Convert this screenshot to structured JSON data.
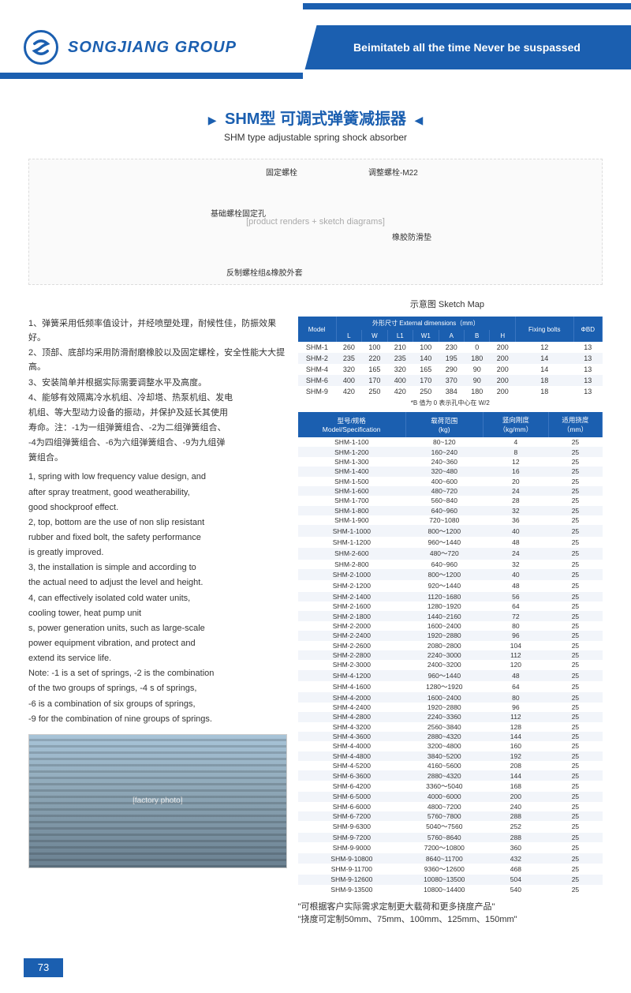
{
  "header": {
    "company": "SONGJIANG GROUP",
    "slogan": "Beimitateb all the time Never be suspassed"
  },
  "title": {
    "cn": "SHM型 可调式弹簧减振器",
    "en": "SHM type adjustable spring shock absorber",
    "sketch_label": "示意图 Sketch Map"
  },
  "diagram_labels": {
    "l1": "固定螺栓",
    "l2": "调整螺栓-M22",
    "l3": "基础螺栓固定孔",
    "l4": "橡胶防滑垫",
    "l5": "反制螺栓组&橡胶外套"
  },
  "cn_desc": [
    "1、弹簧采用低频率值设计，并经喷塑处理，耐候性佳，防振效果好。",
    "2、顶部、底部均采用防滑耐磨橡胶以及固定螺栓，安全性能大大提高。",
    "3、安装简单并根据实际需要调整水平及高度。",
    "4、能够有效隔离冷水机组、冷却塔、热泵机组、发电",
    "机组、等大型动力设备的振动，并保护及延长其使用",
    "寿命。注：-1为一组弹簧组合、-2为二组弹簧组合、",
    "-4为四组弹簧组合、-6为六组弹簧组合、-9为九组弹",
    "簧组合。"
  ],
  "en_desc": [
    "1, spring with low frequency value design, and",
    "after spray treatment, good weatherability,",
    "good shockproof effect.",
    "2, top, bottom are the use of non slip resistant",
    "rubber and fixed bolt, the safety performance",
    "is greatly improved.",
    "3, the installation is simple and according to",
    "the actual need to adjust the level and height.",
    "4, can effectively isolated cold water units,",
    "cooling tower, heat pump unit",
    "s, power generation units, such as large-scale",
    "power equipment vibration, and protect and",
    "extend its service life.",
    "Note: -1 is a set of springs, -2 is the combination",
    "of the two groups of springs, -4 s of springs,",
    "-6 is a combination of six groups of springs,",
    "-9 for the combination of nine groups of springs."
  ],
  "dim_table": {
    "headers_top": [
      "型号",
      "外形尺寸 External dimensions（mm）",
      "固定螺栓",
      ""
    ],
    "headers": [
      "Model",
      "L",
      "W",
      "L1",
      "W1",
      "A",
      "B",
      "H",
      "Fixing bolts",
      "ΦBD"
    ],
    "rows": [
      [
        "SHM-1",
        "260",
        "100",
        "210",
        "100",
        "230",
        "0",
        "200",
        "12",
        "13"
      ],
      [
        "SHM-2",
        "235",
        "220",
        "235",
        "140",
        "195",
        "180",
        "200",
        "14",
        "13"
      ],
      [
        "SHM-4",
        "320",
        "165",
        "320",
        "165",
        "290",
        "90",
        "200",
        "14",
        "13"
      ],
      [
        "SHM-6",
        "400",
        "170",
        "400",
        "170",
        "370",
        "90",
        "200",
        "18",
        "13"
      ],
      [
        "SHM-9",
        "420",
        "250",
        "420",
        "250",
        "384",
        "180",
        "200",
        "18",
        "13"
      ]
    ],
    "note": "*B 值为 0 表示孔中心在 W/2"
  },
  "spec_table": {
    "headers": [
      "型号/规格\nModel/Specification",
      "载荷范围\n(kg)",
      "竖向刚度\n（kg/mm）",
      "适用挠度\n（mm）"
    ],
    "rows": [
      [
        "SHM-1-100",
        "80~120",
        "4",
        "25"
      ],
      [
        "SHM-1-200",
        "160~240",
        "8",
        "25"
      ],
      [
        "SHM-1-300",
        "240~360",
        "12",
        "25"
      ],
      [
        "SHM-1-400",
        "320~480",
        "16",
        "25"
      ],
      [
        "SHM-1-500",
        "400~600",
        "20",
        "25"
      ],
      [
        "SHM-1-600",
        "480~720",
        "24",
        "25"
      ],
      [
        "SHM-1-700",
        "560~840",
        "28",
        "25"
      ],
      [
        "SHM-1-800",
        "640~960",
        "32",
        "25"
      ],
      [
        "SHM-1-900",
        "720~1080",
        "36",
        "25"
      ],
      [
        "SHM-1-1000",
        "800～1200",
        "40",
        "25"
      ],
      [
        "SHM-1-1200",
        "960～1440",
        "48",
        "25"
      ],
      [
        "SHM-2-600",
        "480～720",
        "24",
        "25"
      ],
      [
        "SHM-2-800",
        "640~960",
        "32",
        "25"
      ],
      [
        "SHM-2-1000",
        "800～1200",
        "40",
        "25"
      ],
      [
        "SHM-2-1200",
        "920～1440",
        "48",
        "25"
      ],
      [
        "SHM-2-1400",
        "1120~1680",
        "56",
        "25"
      ],
      [
        "SHM-2-1600",
        "1280~1920",
        "64",
        "25"
      ],
      [
        "SHM-2-1800",
        "1440~2160",
        "72",
        "25"
      ],
      [
        "SHM-2-2000",
        "1600~2400",
        "80",
        "25"
      ],
      [
        "SHM-2-2400",
        "1920~2880",
        "96",
        "25"
      ],
      [
        "SHM-2-2600",
        "2080~2800",
        "104",
        "25"
      ],
      [
        "SHM-2-2800",
        "2240~3000",
        "112",
        "25"
      ],
      [
        "SHM-2-3000",
        "2400~3200",
        "120",
        "25"
      ],
      [
        "SHM-4-1200",
        "960～1440",
        "48",
        "25"
      ],
      [
        "SHM-4-1600",
        "1280～1920",
        "64",
        "25"
      ],
      [
        "SHM-4-2000",
        "1600~2400",
        "80",
        "25"
      ],
      [
        "SHM-4-2400",
        "1920~2880",
        "96",
        "25"
      ],
      [
        "SHM-4-2800",
        "2240~3360",
        "112",
        "25"
      ],
      [
        "SHM-4-3200",
        "2560~3840",
        "128",
        "25"
      ],
      [
        "SHM-4-3600",
        "2880~4320",
        "144",
        "25"
      ],
      [
        "SHM-4-4000",
        "3200~4800",
        "160",
        "25"
      ],
      [
        "SHM-4-4800",
        "3840~5200",
        "192",
        "25"
      ],
      [
        "SHM-4-5200",
        "4160~5600",
        "208",
        "25"
      ],
      [
        "SHM-6-3600",
        "2880~4320",
        "144",
        "25"
      ],
      [
        "SHM-6-4200",
        "3360～5040",
        "168",
        "25"
      ],
      [
        "SHM-6-5000",
        "4000~6000",
        "200",
        "25"
      ],
      [
        "SHM-6-6000",
        "4800~7200",
        "240",
        "25"
      ],
      [
        "SHM-6-7200",
        "5760~7800",
        "288",
        "25"
      ],
      [
        "SHM-9-6300",
        "5040～7560",
        "252",
        "25"
      ],
      [
        "SHM-9-7200",
        "5760~8640",
        "288",
        "25"
      ],
      [
        "SHM-9-9000",
        "7200～10800",
        "360",
        "25"
      ],
      [
        "SHM-9-10800",
        "8640~11700",
        "432",
        "25"
      ],
      [
        "SHM-9-11700",
        "9360～12600",
        "468",
        "25"
      ],
      [
        "SHM-9-12600",
        "10080~13500",
        "504",
        "25"
      ],
      [
        "SHM-9-13500",
        "10800~14400",
        "540",
        "25"
      ]
    ]
  },
  "footer": {
    "n1": "\"可根据客户实际需求定制更大载荷和更多挠度产品\"",
    "n2": "\"挠度可定制50mm、75mm、100mm、125mm、150mm\""
  },
  "page": "73"
}
